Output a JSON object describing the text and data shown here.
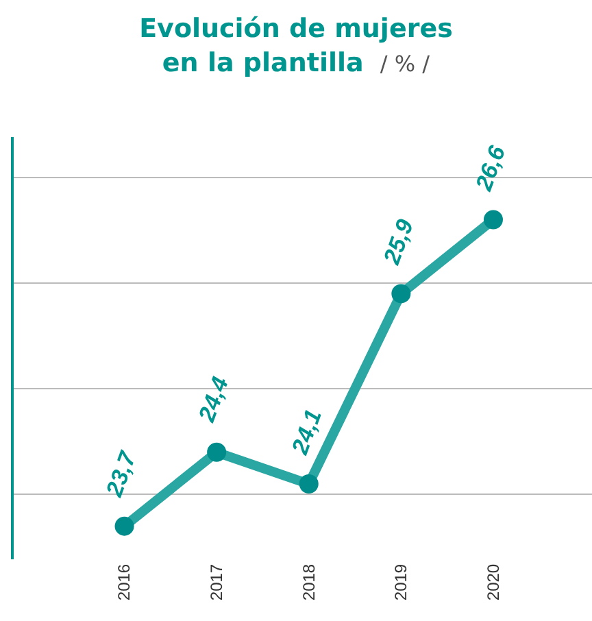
{
  "chart_data": {
    "type": "line",
    "title": "Evolución de mujeres\nen la plantilla",
    "subtitle": "/ % /",
    "categories": [
      "2016",
      "2017",
      "2018",
      "2019",
      "2020"
    ],
    "series": [
      {
        "color": "#2aa6a3",
        "values": [
          23.7,
          24.4,
          24.1,
          25.9,
          26.6
        ],
        "value_labels": [
          "23,7",
          "24,4",
          "24,1",
          "25,9",
          "26,6"
        ]
      }
    ],
    "grid": "y",
    "marker": "circle",
    "line_style": "solid",
    "tick_labels": "x",
    "legend": false
  }
}
